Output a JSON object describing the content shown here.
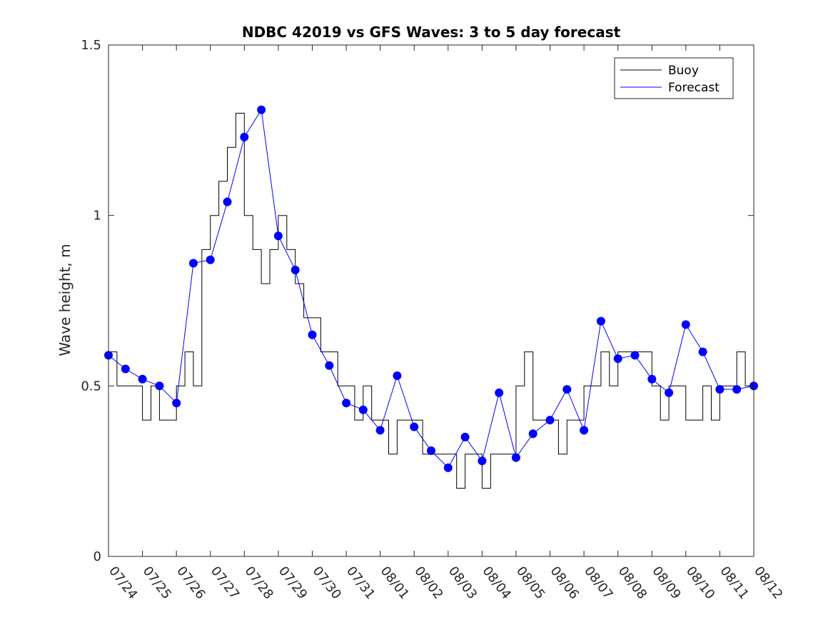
{
  "chart_data": {
    "type": "line",
    "title": "NDBC 42019 vs GFS Waves: 3 to 5 day forecast",
    "xlabel": "",
    "ylabel": "Wave height, m",
    "xlim": [
      "07/24",
      "08/12"
    ],
    "ylim": [
      0,
      1.5
    ],
    "y_ticks": [
      "0",
      "0.5",
      "1",
      "1.5"
    ],
    "x_ticks": [
      "07/24",
      "07/25",
      "07/26",
      "07/27",
      "07/28",
      "07/29",
      "07/30",
      "07/31",
      "08/01",
      "08/02",
      "08/03",
      "08/04",
      "08/05",
      "08/06",
      "08/07",
      "08/08",
      "08/09",
      "08/10",
      "08/11",
      "08/12"
    ],
    "grid": false,
    "legend": {
      "position": "top-right",
      "entries": [
        "Buoy",
        "Forecast"
      ]
    },
    "colors": {
      "buoy": "#000000",
      "forecast": "#0000ff",
      "marker": "#0000ff"
    },
    "series": [
      {
        "name": "Buoy",
        "x": [
          "07/24 00:00",
          "07/24 06:00",
          "07/24 12:00",
          "07/24 18:00",
          "07/25 00:00",
          "07/25 06:00",
          "07/25 12:00",
          "07/25 18:00",
          "07/26 00:00",
          "07/26 06:00",
          "07/26 12:00",
          "07/26 18:00",
          "07/27 00:00",
          "07/27 06:00",
          "07/27 12:00",
          "07/27 18:00",
          "07/28 00:00",
          "07/28 06:00",
          "07/28 12:00",
          "07/28 18:00",
          "07/29 00:00",
          "07/29 06:00",
          "07/29 12:00",
          "07/29 18:00",
          "07/30 00:00",
          "07/30 06:00",
          "07/30 12:00",
          "07/30 18:00",
          "07/31 00:00",
          "07/31 06:00",
          "07/31 12:00",
          "07/31 18:00",
          "08/01 00:00",
          "08/01 06:00",
          "08/01 12:00",
          "08/01 18:00",
          "08/02 00:00",
          "08/02 06:00",
          "08/02 12:00",
          "08/02 18:00",
          "08/03 00:00",
          "08/03 06:00",
          "08/03 12:00",
          "08/03 18:00",
          "08/04 00:00",
          "08/04 06:00",
          "08/04 12:00",
          "08/04 18:00",
          "08/05 00:00",
          "08/05 06:00",
          "08/05 12:00",
          "08/05 18:00",
          "08/06 00:00",
          "08/06 06:00",
          "08/06 12:00",
          "08/06 18:00",
          "08/07 00:00",
          "08/07 06:00",
          "08/07 12:00",
          "08/07 18:00",
          "08/08 00:00",
          "08/08 06:00",
          "08/08 12:00",
          "08/08 18:00",
          "08/09 00:00",
          "08/09 06:00",
          "08/09 12:00",
          "08/09 18:00",
          "08/10 00:00",
          "08/10 06:00",
          "08/10 12:00",
          "08/10 18:00",
          "08/11 00:00",
          "08/11 06:00",
          "08/11 12:00",
          "08/11 18:00",
          "08/12 00:00"
        ],
        "y": [
          0.6,
          0.5,
          0.5,
          0.5,
          0.4,
          0.5,
          0.4,
          0.4,
          0.5,
          0.6,
          0.5,
          0.9,
          1.0,
          1.1,
          1.2,
          1.3,
          1.0,
          0.9,
          0.8,
          0.9,
          1.0,
          0.9,
          0.8,
          0.7,
          0.7,
          0.6,
          0.6,
          0.5,
          0.5,
          0.4,
          0.5,
          0.4,
          0.4,
          0.3,
          0.4,
          0.4,
          0.4,
          0.3,
          0.3,
          0.3,
          0.3,
          0.2,
          0.3,
          0.3,
          0.2,
          0.3,
          0.3,
          0.3,
          0.5,
          0.6,
          0.4,
          0.4,
          0.4,
          0.3,
          0.4,
          0.4,
          0.5,
          0.5,
          0.6,
          0.5,
          0.6,
          0.6,
          0.6,
          0.6,
          0.5,
          0.4,
          0.5,
          0.5,
          0.4,
          0.4,
          0.5,
          0.4,
          0.5,
          0.5,
          0.6,
          0.5,
          0.5
        ]
      },
      {
        "name": "Forecast",
        "x": [
          "07/24 00:00",
          "07/24 12:00",
          "07/25 00:00",
          "07/25 12:00",
          "07/26 00:00",
          "07/26 12:00",
          "07/27 00:00",
          "07/27 12:00",
          "07/28 00:00",
          "07/28 12:00",
          "07/29 00:00",
          "07/29 12:00",
          "07/30 00:00",
          "07/30 12:00",
          "07/31 00:00",
          "07/31 12:00",
          "08/01 00:00",
          "08/01 12:00",
          "08/02 00:00",
          "08/02 12:00",
          "08/03 00:00",
          "08/03 12:00",
          "08/04 00:00",
          "08/04 12:00",
          "08/05 00:00",
          "08/05 12:00",
          "08/06 00:00",
          "08/06 12:00",
          "08/07 00:00",
          "08/07 12:00",
          "08/08 00:00",
          "08/08 12:00",
          "08/09 00:00",
          "08/09 12:00",
          "08/10 00:00",
          "08/10 12:00",
          "08/11 00:00",
          "08/11 12:00",
          "08/12 00:00"
        ],
        "y": [
          0.59,
          0.55,
          0.52,
          0.5,
          0.45,
          0.86,
          0.87,
          1.04,
          1.23,
          1.31,
          0.94,
          0.84,
          0.65,
          0.56,
          0.45,
          0.43,
          0.37,
          0.53,
          0.38,
          0.31,
          0.26,
          0.35,
          0.28,
          0.48,
          0.29,
          0.36,
          0.4,
          0.49,
          0.37,
          0.69,
          0.58,
          0.59,
          0.52,
          0.48,
          0.68,
          0.6,
          0.49,
          0.49,
          0.5
        ]
      }
    ],
    "markers": {
      "x": [
        "07/24 00:00",
        "07/24 12:00",
        "07/25 00:00",
        "07/25 12:00",
        "07/26 00:00",
        "07/26 12:00",
        "07/27 00:00",
        "07/27 12:00",
        "07/28 00:00",
        "07/28 12:00",
        "07/29 00:00",
        "07/29 12:00",
        "07/30 00:00",
        "07/30 12:00",
        "07/31 00:00",
        "07/31 12:00",
        "08/01 00:00",
        "08/01 12:00",
        "08/02 00:00",
        "08/02 12:00",
        "08/03 00:00",
        "08/03 12:00",
        "08/04 00:00",
        "08/04 12:00",
        "08/05 00:00",
        "08/05 12:00",
        "08/06 00:00",
        "08/06 12:00",
        "08/07 00:00",
        "08/07 12:00",
        "08/08 00:00",
        "08/08 12:00",
        "08/09 00:00",
        "08/09 12:00",
        "08/10 00:00",
        "08/10 12:00",
        "08/11 00:00",
        "08/11 12:00",
        "08/12 00:00"
      ],
      "y": [
        0.59,
        0.55,
        0.52,
        0.5,
        0.45,
        0.86,
        0.87,
        1.04,
        1.23,
        1.31,
        0.94,
        0.84,
        0.65,
        0.56,
        0.45,
        0.43,
        0.37,
        0.53,
        0.38,
        0.31,
        0.26,
        0.35,
        0.28,
        0.48,
        0.29,
        0.36,
        0.4,
        0.49,
        0.37,
        0.69,
        0.58,
        0.59,
        0.52,
        0.48,
        0.68,
        0.6,
        0.49,
        0.49,
        0.5
      ]
    }
  }
}
